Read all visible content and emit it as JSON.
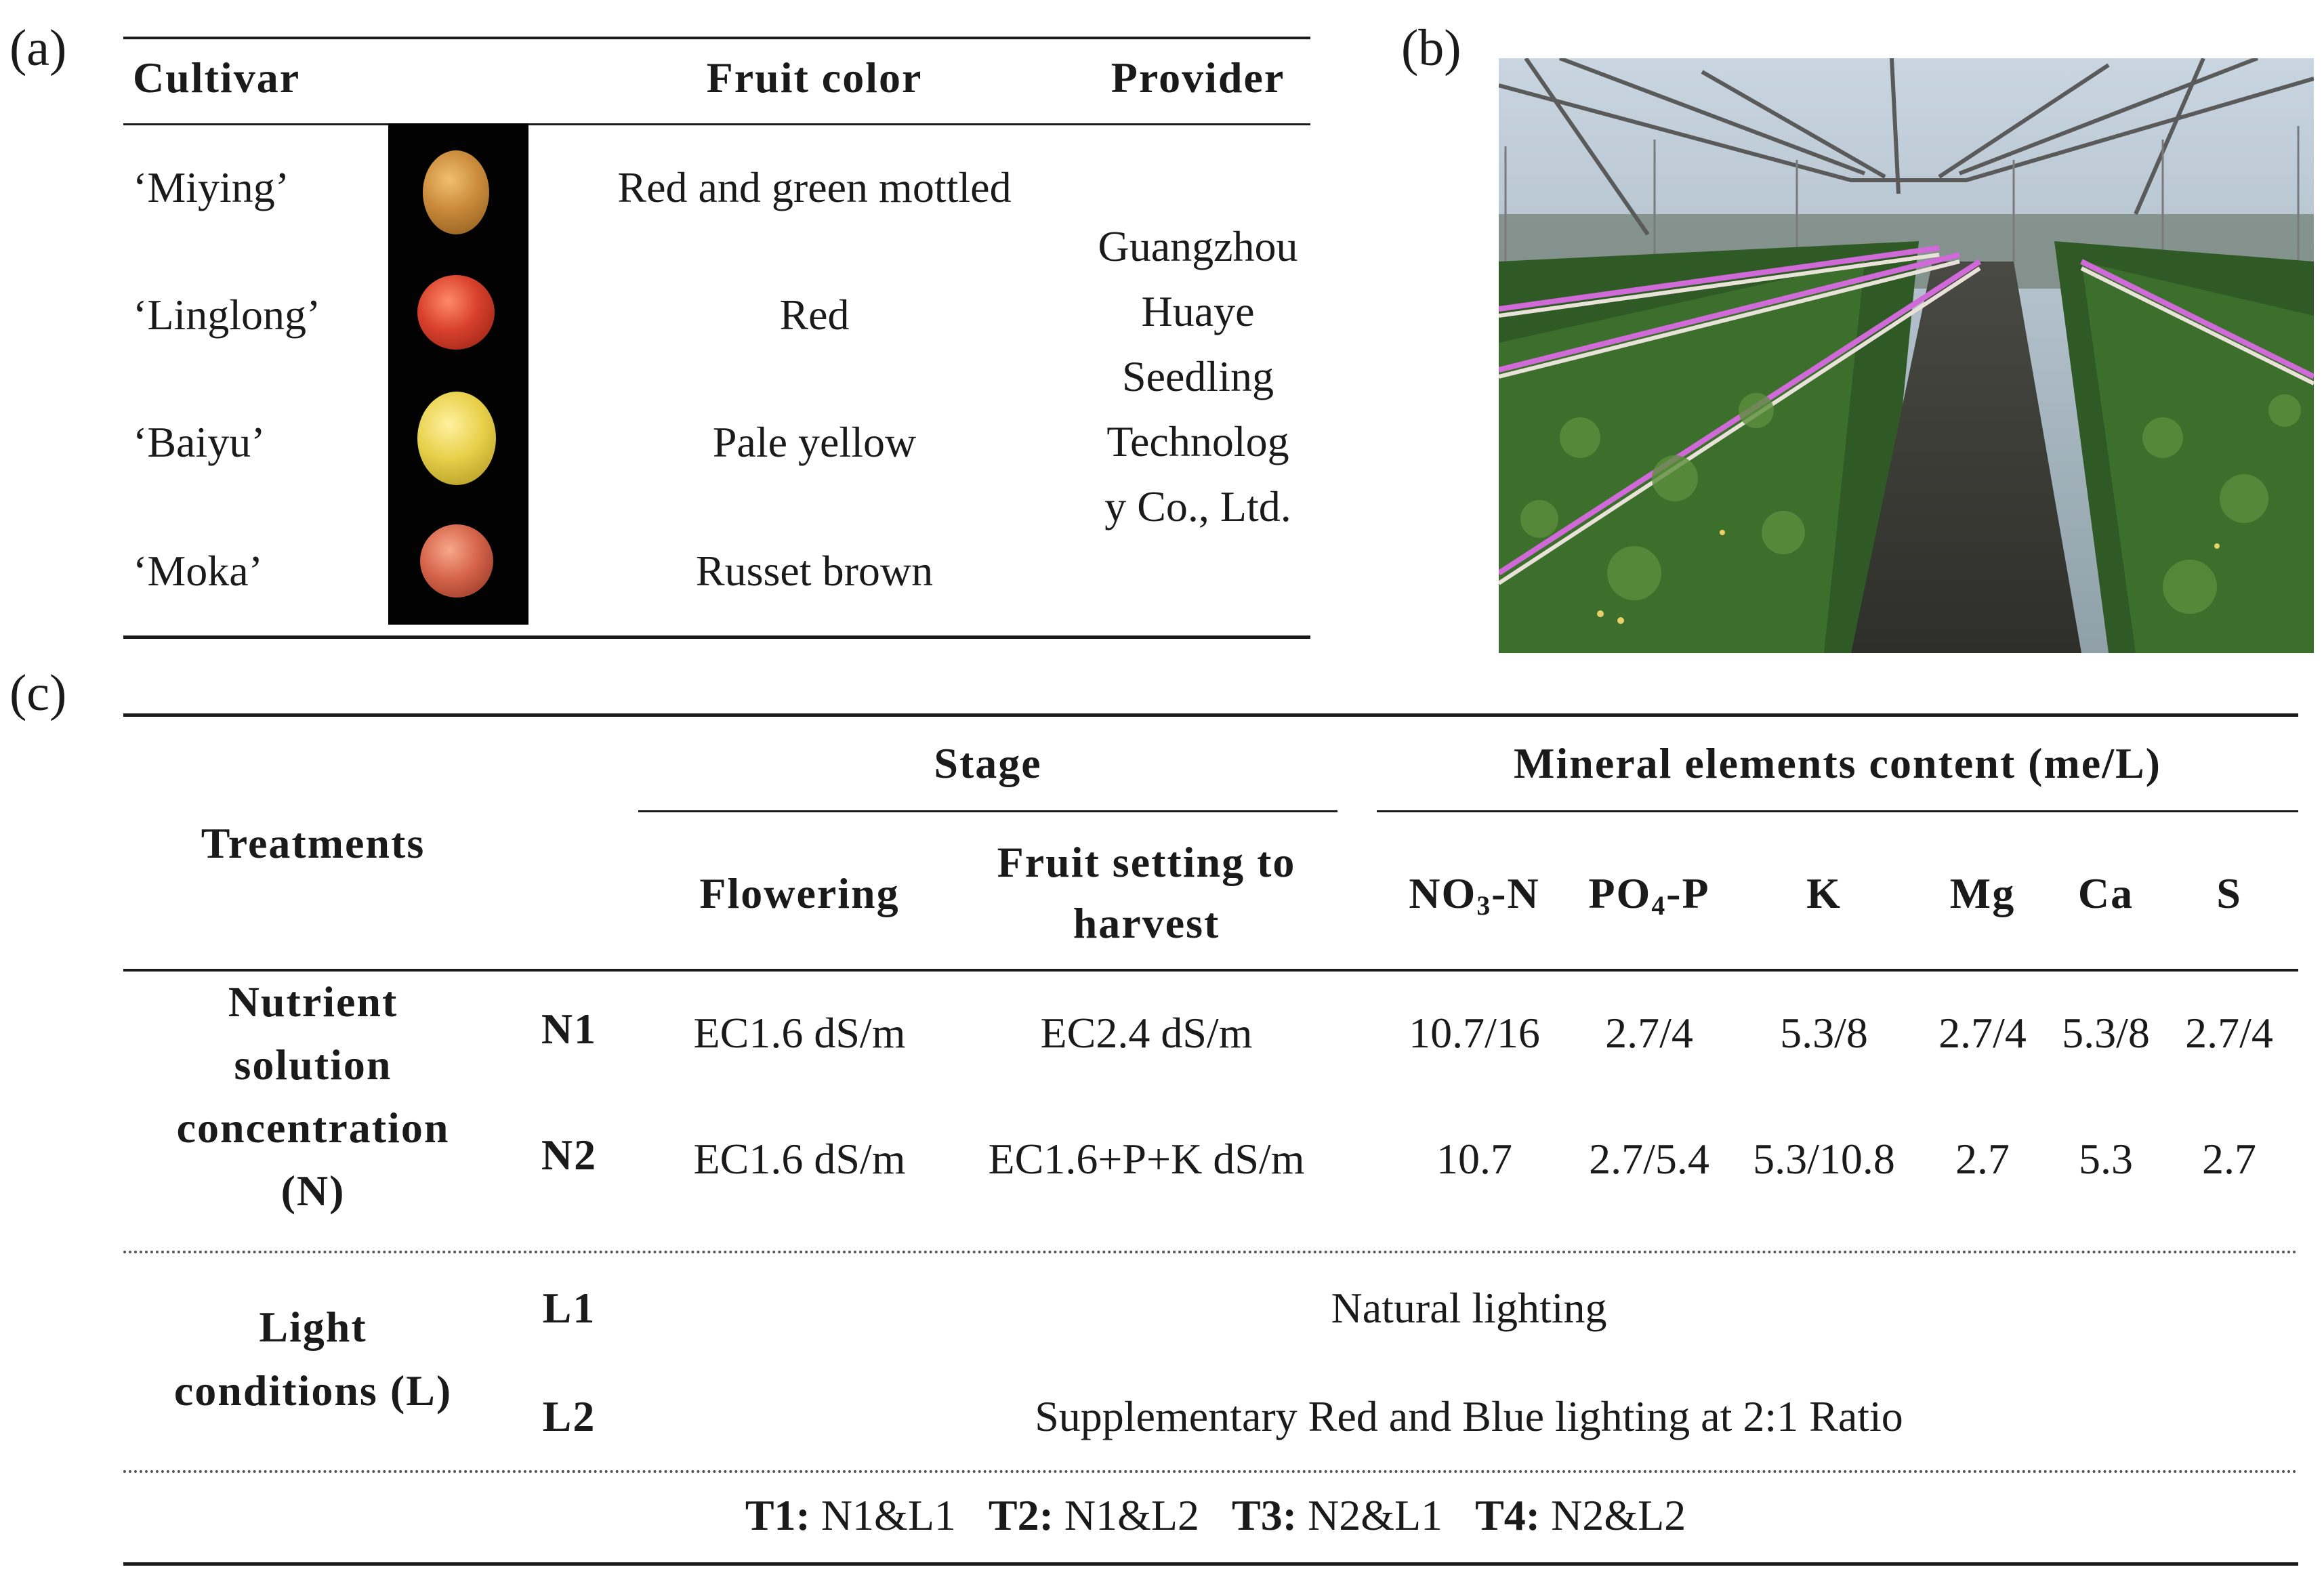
{
  "panel_labels": {
    "a": "(a)",
    "b": "(b)",
    "c": "(c)"
  },
  "table_a": {
    "headers": {
      "cultivar": "Cultivar",
      "fruit_color": "Fruit color",
      "provider": "Provider"
    },
    "rows": [
      {
        "cultivar": "‘Miying’",
        "color": "Red and green mottled"
      },
      {
        "cultivar": "‘Linglong’",
        "color": "Red"
      },
      {
        "cultivar": "‘Baiyu’",
        "color": "Pale yellow"
      },
      {
        "cultivar": "‘Moka’",
        "color": "Russet brown"
      }
    ],
    "provider_lines": [
      "Guangzhou",
      "Huaye",
      "Seedling",
      "Technolog",
      "y Co., Ltd."
    ],
    "fruit_colors": [
      "#c98a3a",
      "#d8402c",
      "#e8d04a",
      "#d5644a"
    ]
  },
  "table_c": {
    "treatments": "Treatments",
    "stage": "Stage",
    "mineral": "Mineral elements content (me/L)",
    "flowering": "Flowering",
    "fruit_setting_1": "Fruit setting   to",
    "fruit_setting_2": "harvest",
    "elements": {
      "no3_main": "NO",
      "no3_sub": "3",
      "no3_tail": "-N",
      "po4_main": "PO",
      "po4_sub": "4",
      "po4_tail": "-P",
      "k": "K",
      "mg": "Mg",
      "ca": "Ca",
      "s": "S"
    },
    "nutrient_group": [
      "Nutrient",
      "solution",
      "concentration",
      "(N)"
    ],
    "light_group": [
      "Light",
      "conditions  (L)"
    ],
    "rows": {
      "n1": {
        "label": "N1",
        "flowering": "EC1.6 dS/m",
        "fruit": "EC2.4 dS/m",
        "no3": "10.7/16",
        "po4": "2.7/4",
        "k": "5.3/8",
        "mg": "2.7/4",
        "ca": "5.3/8",
        "s": "2.7/4"
      },
      "n2": {
        "label": "N2",
        "flowering": "EC1.6 dS/m",
        "fruit": "EC1.6+P+K dS/m",
        "no3": "10.7",
        "po4": "2.7/5.4",
        "k": "5.3/10.8",
        "mg": "2.7",
        "ca": "5.3",
        "s": "2.7"
      },
      "l1": {
        "label": "L1",
        "text": "Natural lighting"
      },
      "l2": {
        "label": "L2",
        "text": "Supplementary Red and Blue lighting at 2:1 Ratio"
      }
    },
    "footer": [
      {
        "key": "T1:",
        "val": " N1&L1"
      },
      {
        "key": "T2:",
        "val": " N1&L2"
      },
      {
        "key": "T3:",
        "val": " N2&L1"
      },
      {
        "key": "T4:",
        "val": " N2&L2"
      }
    ]
  }
}
